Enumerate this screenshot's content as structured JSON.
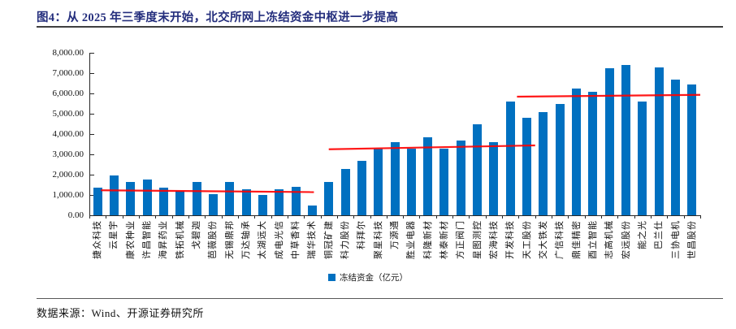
{
  "header": {
    "title": "图4：从 2025 年三季度末开始，北交所网上冻结资金中枢进一步提高"
  },
  "footer": {
    "source": "数据来源：Wind、开源证券研究所"
  },
  "chart_data": {
    "type": "bar",
    "title": "图4：从 2025 年三季度末开始，北交所网上冻结资金中枢进一步提高",
    "legend": {
      "label": "冻结资金（亿元）",
      "swatch_color": "#0070C0"
    },
    "ylim": [
      0,
      8000
    ],
    "ytick_step": 1000,
    "ytick_labels": [
      "0.00",
      "1,000.00",
      "2,000.00",
      "3,000.00",
      "4,000.00",
      "5,000.00",
      "6,000.00",
      "7,000.00",
      "8,000.00"
    ],
    "grid": false,
    "bar_color": "#0070C0",
    "trend_line_color": "#FF0000",
    "categories": [
      "捷众科技",
      "云星宇",
      "康农种业",
      "许昌智能",
      "海昇药业",
      "铁拓机械",
      "戈碧迦",
      "芭薇股份",
      "无锡鼎邦",
      "万达轴承",
      "太湖远大",
      "成电光信",
      "中草香料",
      "瑞华技术",
      "铜冠矿建",
      "科力股份",
      "科拜尔",
      "聚星科技",
      "万源通",
      "胜业电器",
      "科隆新材",
      "林泰新材",
      "方正阀门",
      "星图测控",
      "宏海科技",
      "开发科技",
      "天工股份",
      "交大铁发",
      "广信科技",
      "鼎佳精密",
      "酉立智能",
      "志高机械",
      "宏远股份",
      "能之光",
      "巴兰仕",
      "三协电机",
      "世昌股份"
    ],
    "values": [
      1350,
      1950,
      1650,
      1750,
      1350,
      1200,
      1650,
      1050,
      1650,
      1300,
      1000,
      1300,
      1400,
      500,
      1650,
      2300,
      2700,
      3300,
      3600,
      3300,
      3850,
      3300,
      3700,
      4500,
      3600,
      5600,
      4800,
      5100,
      5500,
      6250,
      6100,
      7250,
      7400,
      5600,
      7300,
      6700,
      6450
    ],
    "trend_segments": [
      {
        "from_index": 0.2,
        "to_index": 13.1,
        "from_value": 1230,
        "to_value": 1140
      },
      {
        "from_index": 14.0,
        "to_index": 26.5,
        "from_value": 3250,
        "to_value": 3440
      },
      {
        "from_index": 25.4,
        "to_index": 36.5,
        "from_value": 5840,
        "to_value": 5930
      }
    ]
  }
}
